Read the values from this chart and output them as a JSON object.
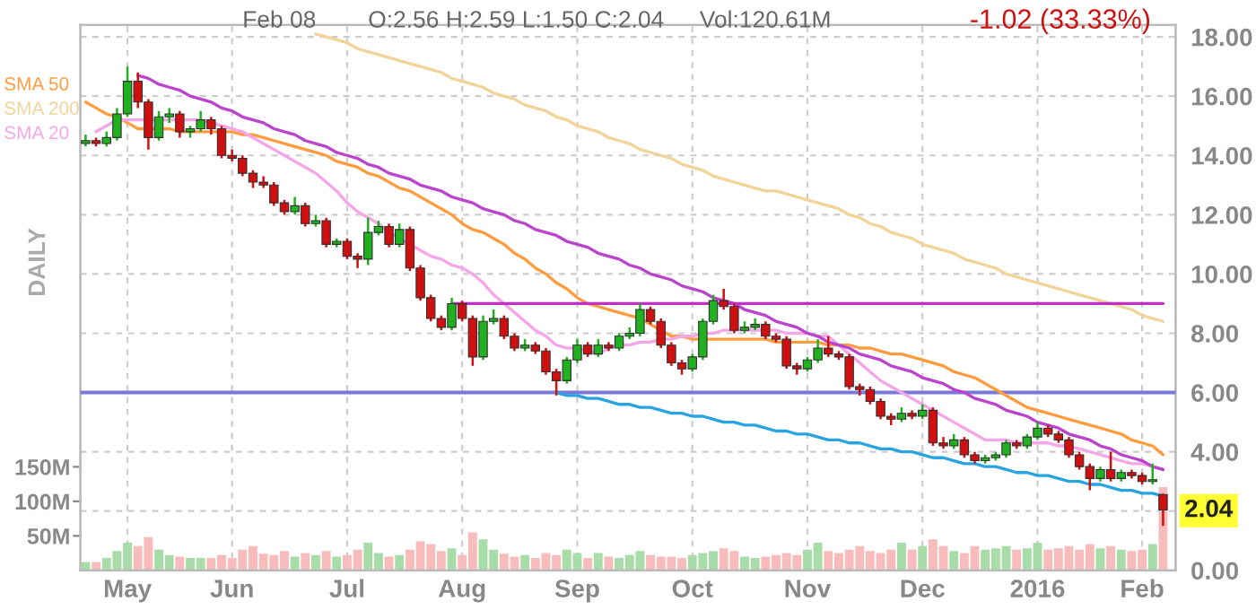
{
  "chart_data": {
    "type": "candlestick",
    "categories": [
      null,
      null,
      null,
      null,
      "May",
      null,
      null,
      null,
      null,
      null,
      null,
      null,
      null,
      null,
      "Jun",
      null,
      null,
      null,
      null,
      null,
      null,
      null,
      null,
      null,
      null,
      "Jul",
      null,
      null,
      null,
      null,
      null,
      null,
      null,
      null,
      null,
      null,
      "Aug",
      null,
      null,
      null,
      null,
      null,
      null,
      null,
      null,
      null,
      null,
      "Sep",
      null,
      null,
      null,
      null,
      null,
      null,
      null,
      null,
      null,
      null,
      "Oct",
      null,
      null,
      null,
      null,
      null,
      null,
      null,
      null,
      null,
      null,
      "Nov",
      null,
      null,
      null,
      null,
      null,
      null,
      null,
      null,
      null,
      null,
      "Dec",
      null,
      null,
      null,
      null,
      null,
      null,
      null,
      null,
      null,
      null,
      "2016",
      null,
      null,
      null,
      null,
      null,
      null,
      null,
      null,
      null,
      "Feb",
      null,
      null
    ],
    "ohlc": [
      [
        14.4,
        14.7,
        14.3,
        14.5
      ],
      [
        14.5,
        14.6,
        14.3,
        14.4
      ],
      [
        14.4,
        14.8,
        14.3,
        14.6
      ],
      [
        14.6,
        15.6,
        14.5,
        15.4
      ],
      [
        15.4,
        17.0,
        15.3,
        16.5
      ],
      [
        16.5,
        16.8,
        15.6,
        15.8
      ],
      [
        15.8,
        15.9,
        14.2,
        14.6
      ],
      [
        14.6,
        15.5,
        14.5,
        15.3
      ],
      [
        15.3,
        15.6,
        15.1,
        15.4
      ],
      [
        15.4,
        15.5,
        14.6,
        14.8
      ],
      [
        14.8,
        15.0,
        14.6,
        14.9
      ],
      [
        14.9,
        15.5,
        14.8,
        15.2
      ],
      [
        15.2,
        15.3,
        14.7,
        14.9
      ],
      [
        14.9,
        15.0,
        13.9,
        14.0
      ],
      [
        14.0,
        14.2,
        13.8,
        13.9
      ],
      [
        13.9,
        14.0,
        13.3,
        13.4
      ],
      [
        13.4,
        13.5,
        12.9,
        13.1
      ],
      [
        13.1,
        13.3,
        12.9,
        13.0
      ],
      [
        13.0,
        13.1,
        12.3,
        12.4
      ],
      [
        12.4,
        12.5,
        12.0,
        12.1
      ],
      [
        12.1,
        12.6,
        12.0,
        12.3
      ],
      [
        12.3,
        12.4,
        11.6,
        11.7
      ],
      [
        11.7,
        12.0,
        11.6,
        11.8
      ],
      [
        11.8,
        11.9,
        10.9,
        11.0
      ],
      [
        11.0,
        11.2,
        10.9,
        11.1
      ],
      [
        11.1,
        11.2,
        10.5,
        10.6
      ],
      [
        10.6,
        10.7,
        10.2,
        10.5
      ],
      [
        10.5,
        11.9,
        10.3,
        11.4
      ],
      [
        11.4,
        11.8,
        11.3,
        11.6
      ],
      [
        11.6,
        11.7,
        10.9,
        11.0
      ],
      [
        11.0,
        11.7,
        10.9,
        11.5
      ],
      [
        11.5,
        11.6,
        10.1,
        10.2
      ],
      [
        10.2,
        10.3,
        9.1,
        9.2
      ],
      [
        9.2,
        9.3,
        8.4,
        8.5
      ],
      [
        8.5,
        8.6,
        8.1,
        8.2
      ],
      [
        8.2,
        9.2,
        8.1,
        9.0
      ],
      [
        9.0,
        9.1,
        8.4,
        8.5
      ],
      [
        8.5,
        8.6,
        6.9,
        7.2
      ],
      [
        7.2,
        8.6,
        7.1,
        8.4
      ],
      [
        8.4,
        8.8,
        8.3,
        8.5
      ],
      [
        8.5,
        8.6,
        7.8,
        7.9
      ],
      [
        7.9,
        8.0,
        7.4,
        7.5
      ],
      [
        7.5,
        7.8,
        7.4,
        7.6
      ],
      [
        7.6,
        7.7,
        7.3,
        7.4
      ],
      [
        7.4,
        7.5,
        6.6,
        6.7
      ],
      [
        6.7,
        6.8,
        5.9,
        6.4
      ],
      [
        6.4,
        7.2,
        6.3,
        7.1
      ],
      [
        7.1,
        7.8,
        7.0,
        7.6
      ],
      [
        7.6,
        7.7,
        7.2,
        7.3
      ],
      [
        7.3,
        7.8,
        7.2,
        7.6
      ],
      [
        7.6,
        7.7,
        7.4,
        7.5
      ],
      [
        7.5,
        8.0,
        7.4,
        7.9
      ],
      [
        7.9,
        8.2,
        7.8,
        8.0
      ],
      [
        8.0,
        9.0,
        7.9,
        8.8
      ],
      [
        8.8,
        8.9,
        8.3,
        8.4
      ],
      [
        8.4,
        8.5,
        7.5,
        7.6
      ],
      [
        7.6,
        7.7,
        6.9,
        7.0
      ],
      [
        7.0,
        7.1,
        6.6,
        6.8
      ],
      [
        6.8,
        7.3,
        6.7,
        7.2
      ],
      [
        7.2,
        8.5,
        7.1,
        8.4
      ],
      [
        8.4,
        9.3,
        8.3,
        9.1
      ],
      [
        9.1,
        9.5,
        8.8,
        8.9
      ],
      [
        8.9,
        9.0,
        8.0,
        8.1
      ],
      [
        8.1,
        8.4,
        8.0,
        8.2
      ],
      [
        8.2,
        8.5,
        8.1,
        8.3
      ],
      [
        8.3,
        8.4,
        7.8,
        7.9
      ],
      [
        7.9,
        8.0,
        7.7,
        7.8
      ],
      [
        7.8,
        7.9,
        6.8,
        6.9
      ],
      [
        6.9,
        7.0,
        6.6,
        6.8
      ],
      [
        6.8,
        7.2,
        6.7,
        7.1
      ],
      [
        7.1,
        7.8,
        7.0,
        7.5
      ],
      [
        7.5,
        7.9,
        7.2,
        7.3
      ],
      [
        7.3,
        7.4,
        7.1,
        7.2
      ],
      [
        7.2,
        7.3,
        6.1,
        6.2
      ],
      [
        6.2,
        6.3,
        5.9,
        6.1
      ],
      [
        6.1,
        6.2,
        5.6,
        5.7
      ],
      [
        5.7,
        5.8,
        5.1,
        5.2
      ],
      [
        5.2,
        5.3,
        4.9,
        5.1
      ],
      [
        5.1,
        5.5,
        5.0,
        5.3
      ],
      [
        5.3,
        5.4,
        5.1,
        5.2
      ],
      [
        5.2,
        5.6,
        5.1,
        5.4
      ],
      [
        5.4,
        5.5,
        4.2,
        4.3
      ],
      [
        4.3,
        4.5,
        4.1,
        4.2
      ],
      [
        4.2,
        4.6,
        4.1,
        4.4
      ],
      [
        4.4,
        4.5,
        3.8,
        3.9
      ],
      [
        3.9,
        4.0,
        3.6,
        3.7
      ],
      [
        3.7,
        3.9,
        3.6,
        3.8
      ],
      [
        3.8,
        4.0,
        3.7,
        3.9
      ],
      [
        3.9,
        4.4,
        3.8,
        4.3
      ],
      [
        4.3,
        4.4,
        4.1,
        4.2
      ],
      [
        4.2,
        4.6,
        4.1,
        4.5
      ],
      [
        4.5,
        5.0,
        4.4,
        4.8
      ],
      [
        4.8,
        4.9,
        4.5,
        4.6
      ],
      [
        4.6,
        4.7,
        4.3,
        4.4
      ],
      [
        4.4,
        4.5,
        3.8,
        3.9
      ],
      [
        3.9,
        4.0,
        3.4,
        3.5
      ],
      [
        3.5,
        3.6,
        2.7,
        3.1
      ],
      [
        3.1,
        3.5,
        3.0,
        3.4
      ],
      [
        3.4,
        4.0,
        3.0,
        3.1
      ],
      [
        3.1,
        3.4,
        3.0,
        3.3
      ],
      [
        3.3,
        3.4,
        3.1,
        3.2
      ],
      [
        3.2,
        3.3,
        2.9,
        3.0
      ],
      [
        3.0,
        3.6,
        2.9,
        3.06
      ],
      [
        2.56,
        2.59,
        1.5,
        2.04
      ]
    ],
    "colors": [
      "#20b020",
      "#d01010",
      "#20b020",
      "#20b020",
      "#20b020",
      "#d01010",
      "#d01010",
      "#20b020",
      "#20b020",
      "#d01010",
      "#20b020",
      "#20b020",
      "#d01010",
      "#d01010",
      "#d01010",
      "#d01010",
      "#d01010",
      "#d01010",
      "#d01010",
      "#d01010",
      "#20b020",
      "#d01010",
      "#20b020",
      "#d01010",
      "#20b020",
      "#d01010",
      "#d01010",
      "#20b020",
      "#20b020",
      "#d01010",
      "#20b020",
      "#d01010",
      "#d01010",
      "#d01010",
      "#d01010",
      "#20b020",
      "#d01010",
      "#d01010",
      "#20b020",
      "#20b020",
      "#d01010",
      "#d01010",
      "#20b020",
      "#d01010",
      "#d01010",
      "#d01010",
      "#20b020",
      "#20b020",
      "#d01010",
      "#20b020",
      "#d01010",
      "#20b020",
      "#20b020",
      "#20b020",
      "#d01010",
      "#d01010",
      "#d01010",
      "#d01010",
      "#20b020",
      "#20b020",
      "#20b020",
      "#d01010",
      "#d01010",
      "#20b020",
      "#20b020",
      "#d01010",
      "#d01010",
      "#d01010",
      "#d01010",
      "#20b020",
      "#20b020",
      "#d01010",
      "#d01010",
      "#d01010",
      "#d01010",
      "#d01010",
      "#d01010",
      "#d01010",
      "#20b020",
      "#d01010",
      "#20b020",
      "#d01010",
      "#d01010",
      "#20b020",
      "#d01010",
      "#d01010",
      "#20b020",
      "#20b020",
      "#20b020",
      "#d01010",
      "#20b020",
      "#20b020",
      "#d01010",
      "#d01010",
      "#d01010",
      "#d01010",
      "#d01010",
      "#20b020",
      "#d01010",
      "#20b020",
      "#d01010",
      "#d01010",
      "#20b020",
      "#d01010"
    ],
    "series": [
      {
        "type": "bar",
        "axis": "y2",
        "values": [
          12,
          12,
          18,
          28,
          40,
          35,
          48,
          30,
          22,
          20,
          18,
          18,
          18,
          22,
          18,
          30,
          35,
          24,
          22,
          28,
          20,
          25,
          22,
          28,
          20,
          22,
          30,
          40,
          25,
          20,
          22,
          30,
          42,
          38,
          28,
          32,
          22,
          55,
          45,
          30,
          24,
          20,
          22,
          18,
          25,
          22,
          30,
          25,
          18,
          25,
          20,
          18,
          22,
          28,
          22,
          20,
          20,
          18,
          22,
          25,
          28,
          32,
          28,
          20,
          18,
          20,
          22,
          25,
          22,
          30,
          40,
          28,
          25,
          30,
          35,
          28,
          25,
          30,
          40,
          30,
          35,
          45,
          35,
          28,
          25,
          35,
          30,
          32,
          35,
          30,
          32,
          40,
          30,
          32,
          35,
          30,
          38,
          32,
          35,
          30,
          28,
          30,
          38,
          120.61
        ],
        "colors": [
          "#a8dca8",
          "#f8bcbc",
          "#a8dca8",
          "#a8dca8",
          "#a8dca8",
          "#f8bcbc",
          "#f8bcbc",
          "#a8dca8",
          "#a8dca8",
          "#f8bcbc",
          "#a8dca8",
          "#a8dca8",
          "#f8bcbc",
          "#f8bcbc",
          "#f8bcbc",
          "#f8bcbc",
          "#f8bcbc",
          "#f8bcbc",
          "#f8bcbc",
          "#f8bcbc",
          "#a8dca8",
          "#f8bcbc",
          "#a8dca8",
          "#f8bcbc",
          "#a8dca8",
          "#f8bcbc",
          "#f8bcbc",
          "#a8dca8",
          "#a8dca8",
          "#f8bcbc",
          "#a8dca8",
          "#f8bcbc",
          "#f8bcbc",
          "#f8bcbc",
          "#f8bcbc",
          "#a8dca8",
          "#f8bcbc",
          "#f8bcbc",
          "#a8dca8",
          "#a8dca8",
          "#f8bcbc",
          "#f8bcbc",
          "#a8dca8",
          "#f8bcbc",
          "#f8bcbc",
          "#f8bcbc",
          "#a8dca8",
          "#a8dca8",
          "#f8bcbc",
          "#a8dca8",
          "#f8bcbc",
          "#a8dca8",
          "#a8dca8",
          "#a8dca8",
          "#f8bcbc",
          "#f8bcbc",
          "#f8bcbc",
          "#f8bcbc",
          "#a8dca8",
          "#a8dca8",
          "#a8dca8",
          "#f8bcbc",
          "#f8bcbc",
          "#a8dca8",
          "#a8dca8",
          "#f8bcbc",
          "#f8bcbc",
          "#f8bcbc",
          "#f8bcbc",
          "#a8dca8",
          "#a8dca8",
          "#f8bcbc",
          "#f8bcbc",
          "#f8bcbc",
          "#f8bcbc",
          "#f8bcbc",
          "#f8bcbc",
          "#f8bcbc",
          "#a8dca8",
          "#f8bcbc",
          "#a8dca8",
          "#f8bcbc",
          "#f8bcbc",
          "#a8dca8",
          "#f8bcbc",
          "#f8bcbc",
          "#a8dca8",
          "#a8dca8",
          "#a8dca8",
          "#f8bcbc",
          "#a8dca8",
          "#a8dca8",
          "#f8bcbc",
          "#f8bcbc",
          "#f8bcbc",
          "#f8bcbc",
          "#f8bcbc",
          "#a8dca8",
          "#f8bcbc",
          "#a8dca8",
          "#f8bcbc",
          "#f8bcbc",
          "#a8dca8",
          "#f8bcbc"
        ]
      },
      {
        "type": "line",
        "name": "SMA 50",
        "color": "#ff9c40",
        "values": [
          15.8,
          15.6,
          15.4,
          15.3,
          15.1,
          14.9,
          14.9,
          14.9,
          14.9,
          14.8,
          14.8,
          14.8,
          14.8,
          14.8,
          14.8,
          14.7,
          14.7,
          14.6,
          14.5,
          14.4,
          14.3,
          14.2,
          14.1,
          14.0,
          13.8,
          13.7,
          13.6,
          13.4,
          13.3,
          13.1,
          12.9,
          12.8,
          12.6,
          12.4,
          12.2,
          12.0,
          11.7,
          11.5,
          11.4,
          11.2,
          11.0,
          10.7,
          10.5,
          10.2,
          10.0,
          9.7,
          9.5,
          9.2,
          9.0,
          8.9,
          8.8,
          8.7,
          8.6,
          8.5,
          8.3,
          8.1,
          7.9,
          7.9,
          7.8,
          7.8,
          7.8,
          7.8,
          7.8,
          7.8,
          7.8,
          7.8,
          7.7,
          7.7,
          7.7,
          7.7,
          7.7,
          7.6,
          7.6,
          7.6,
          7.5,
          7.5,
          7.4,
          7.3,
          7.3,
          7.2,
          7.1,
          7.0,
          6.9,
          6.7,
          6.6,
          6.5,
          6.3,
          6.1,
          5.9,
          5.7,
          5.5,
          5.4,
          5.3,
          5.2,
          5.1,
          5.0,
          4.9,
          4.8,
          4.7,
          4.6,
          4.4,
          4.3,
          4.2,
          3.9
        ]
      },
      {
        "type": "line",
        "name": "SMA 200",
        "color": "#f2d49a",
        "values": [
          null,
          null,
          null,
          null,
          null,
          null,
          null,
          null,
          null,
          null,
          null,
          null,
          null,
          null,
          null,
          null,
          null,
          null,
          null,
          null,
          null,
          null,
          18.1,
          18.0,
          17.9,
          17.8,
          17.6,
          17.5,
          17.4,
          17.3,
          17.2,
          17.1,
          17.0,
          16.9,
          16.8,
          16.6,
          16.5,
          16.4,
          16.3,
          16.1,
          16.0,
          15.9,
          15.7,
          15.6,
          15.5,
          15.3,
          15.2,
          15.0,
          14.9,
          14.8,
          14.6,
          14.5,
          14.4,
          14.2,
          14.1,
          14.0,
          13.9,
          13.7,
          13.6,
          13.5,
          13.3,
          13.2,
          13.1,
          13.0,
          12.9,
          12.8,
          12.8,
          12.7,
          12.6,
          12.5,
          12.4,
          12.3,
          12.2,
          12.0,
          11.9,
          11.7,
          11.6,
          11.4,
          11.3,
          11.2,
          11.0,
          10.9,
          10.8,
          10.7,
          10.5,
          10.4,
          10.3,
          10.2,
          10.0,
          9.9,
          9.8,
          9.7,
          9.6,
          9.5,
          9.4,
          9.3,
          9.2,
          9.1,
          9.0,
          8.9,
          8.8,
          8.6,
          8.5,
          8.4
        ]
      },
      {
        "type": "line",
        "name": "SMA 20",
        "color": "#f4a6e8",
        "values": [
          null,
          14.8,
          15.0,
          15.2,
          15.2,
          15.2,
          15.2,
          15.2,
          15.2,
          15.2,
          15.2,
          15.2,
          15.1,
          15.0,
          14.9,
          14.8,
          14.6,
          14.4,
          14.2,
          14.0,
          13.8,
          13.6,
          13.4,
          13.1,
          12.8,
          12.4,
          12.1,
          11.9,
          11.7,
          11.4,
          11.2,
          11.0,
          10.8,
          10.6,
          10.5,
          10.3,
          10.2,
          10.0,
          9.7,
          9.3,
          9.0,
          8.7,
          8.4,
          8.1,
          7.9,
          7.6,
          7.5,
          7.5,
          7.4,
          7.3,
          7.5,
          7.6,
          7.6,
          7.7,
          7.7,
          7.8,
          7.8,
          7.9,
          7.9,
          8.0,
          8.0,
          8.1,
          8.1,
          8.1,
          8.1,
          8.1,
          8.1,
          8.0,
          8.0,
          8.0,
          7.9,
          7.9,
          7.6,
          7.3,
          7.0,
          6.7,
          6.4,
          6.2,
          6.0,
          5.8,
          5.6,
          5.4,
          5.2,
          5.0,
          4.8,
          4.6,
          4.4,
          4.4,
          4.4,
          4.3,
          4.3,
          4.3,
          4.3,
          4.2,
          4.2,
          4.1,
          4.0,
          3.9,
          3.8,
          3.7,
          3.6,
          3.6,
          3.5,
          3.4
        ]
      },
      {
        "type": "line",
        "color": "#bb44cc",
        "values": [
          null,
          null,
          null,
          null,
          null,
          16.7,
          16.6,
          16.4,
          16.3,
          16.2,
          16.0,
          15.9,
          15.8,
          15.6,
          15.5,
          15.3,
          15.2,
          15.1,
          14.9,
          14.8,
          14.7,
          14.5,
          14.4,
          14.3,
          14.1,
          14.0,
          13.9,
          13.7,
          13.6,
          13.4,
          13.3,
          13.2,
          13.0,
          12.9,
          12.8,
          12.6,
          12.5,
          12.4,
          12.2,
          12.1,
          12.0,
          11.8,
          11.7,
          11.5,
          11.4,
          11.3,
          11.1,
          11.0,
          10.9,
          10.7,
          10.6,
          10.5,
          10.3,
          10.2,
          10.0,
          9.9,
          9.8,
          9.6,
          9.5,
          9.4,
          9.2,
          9.1,
          9.0,
          8.8,
          8.7,
          8.6,
          8.4,
          8.3,
          8.2,
          8.0,
          7.9,
          7.7,
          7.6,
          7.5,
          7.3,
          7.2,
          7.1,
          6.9,
          6.8,
          6.7,
          6.5,
          6.4,
          6.3,
          6.1,
          6.0,
          5.8,
          5.7,
          5.6,
          5.4,
          5.3,
          5.2,
          5.0,
          4.9,
          4.8,
          4.6,
          4.5,
          4.4,
          4.2,
          4.1,
          3.9,
          3.8,
          3.7,
          3.5,
          3.4
        ]
      },
      {
        "type": "line",
        "color": "#2aa4e0",
        "values": [
          null,
          null,
          null,
          null,
          null,
          null,
          null,
          null,
          null,
          null,
          null,
          null,
          null,
          null,
          null,
          null,
          null,
          null,
          null,
          null,
          null,
          null,
          null,
          null,
          null,
          null,
          null,
          null,
          null,
          null,
          null,
          null,
          null,
          null,
          null,
          null,
          null,
          null,
          null,
          null,
          null,
          null,
          null,
          null,
          null,
          6.0,
          5.9,
          5.9,
          5.8,
          5.8,
          5.7,
          5.6,
          5.6,
          5.5,
          5.5,
          5.4,
          5.3,
          5.3,
          5.2,
          5.2,
          5.1,
          5.0,
          5.0,
          4.9,
          4.9,
          4.8,
          4.7,
          4.7,
          4.6,
          4.6,
          4.5,
          4.4,
          4.4,
          4.3,
          4.3,
          4.2,
          4.1,
          4.1,
          4.0,
          4.0,
          3.9,
          3.8,
          3.8,
          3.7,
          3.6,
          3.6,
          3.5,
          3.5,
          3.4,
          3.3,
          3.3,
          3.2,
          3.2,
          3.1,
          3.0,
          3.0,
          2.9,
          2.9,
          2.8,
          2.7,
          2.7,
          2.6,
          2.6,
          2.5
        ]
      },
      {
        "type": "line",
        "color": "#c030c8",
        "values": [
          null,
          null,
          null,
          null,
          null,
          null,
          null,
          null,
          null,
          null,
          null,
          null,
          null,
          null,
          null,
          null,
          null,
          null,
          null,
          null,
          null,
          null,
          null,
          null,
          null,
          null,
          null,
          null,
          null,
          null,
          null,
          null,
          null,
          null,
          null,
          9.0,
          9.0,
          9.0,
          9.0,
          9.0,
          9.0,
          9.0,
          9.0,
          9.0,
          9.0,
          9.0,
          9.0,
          9.0,
          9.0,
          9.0,
          9.0,
          9.0,
          9.0,
          9.0,
          9.0,
          9.0,
          9.0,
          9.0,
          9.0,
          9.0,
          9.0,
          9.0,
          9.0,
          9.0,
          9.0,
          9.0,
          9.0,
          9.0,
          9.0,
          9.0,
          9.0,
          9.0,
          9.0,
          9.0,
          9.0,
          9.0,
          9.0,
          9.0,
          9.0,
          9.0,
          9.0,
          9.0,
          9.0,
          9.0,
          9.0,
          9.0,
          9.0,
          9.0,
          9.0,
          9.0,
          9.0,
          9.0,
          9.0,
          9.0,
          9.0,
          9.0,
          9.0,
          9.0,
          9.0,
          9.0,
          9.0,
          9.0,
          9.0,
          9.0
        ]
      }
    ],
    "ref_lines": [
      {
        "axis": "y",
        "value": 6.0,
        "label": null,
        "color": "#7878d8"
      }
    ],
    "ylim": [
      0,
      18.4
    ],
    "yticks": [
      {
        "value": 0,
        "label": "0.00"
      },
      {
        "value": 2,
        "label": null
      },
      {
        "value": 4,
        "label": "4.00"
      },
      {
        "value": 6,
        "label": "6.00"
      },
      {
        "value": 8,
        "label": "8.00"
      },
      {
        "value": 10,
        "label": "10.00"
      },
      {
        "value": 12,
        "label": "12.00"
      },
      {
        "value": 14,
        "label": "14.00"
      },
      {
        "value": 16,
        "label": "16.00"
      },
      {
        "value": 18,
        "label": "18.00"
      }
    ],
    "y2lim": [
      0,
      790
    ],
    "y2ticks": [
      {
        "value": 50,
        "label": "50M"
      },
      {
        "value": 100,
        "label": "100M"
      },
      {
        "value": 150,
        "label": "150M"
      }
    ],
    "grid": true,
    "legend": "top left",
    "annotations": [
      "Feb 08",
      "O:2.56 H:2.59 L:1.50 C:2.04",
      "Vol:120.61M",
      "-1.02 (33.33%)",
      "DAILY",
      "2.04"
    ]
  }
}
